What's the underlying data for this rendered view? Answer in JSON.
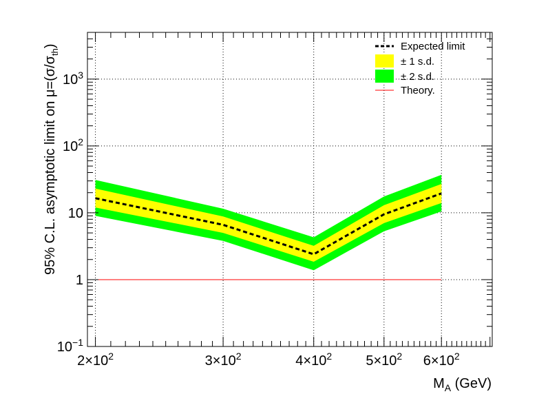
{
  "chart_data": {
    "type": "line",
    "x_scale": "log",
    "y_scale": "log",
    "xlim": [
      195,
      705
    ],
    "ylim": [
      0.1,
      5000
    ],
    "grid": true,
    "xlabel": {
      "main": "M",
      "sub": "A",
      "unit": " (GeV)"
    },
    "ylabel": {
      "main": "95% C.L. asymptotic limit on μ=(σ/σ",
      "sub": "th",
      "close": ")"
    },
    "x_ticks": [
      {
        "value": 200,
        "mantissa": "2×10",
        "exp": "2"
      },
      {
        "value": 300,
        "mantissa": "3×10",
        "exp": "2"
      },
      {
        "value": 400,
        "mantissa": "4×10",
        "exp": "2"
      },
      {
        "value": 500,
        "mantissa": "5×10",
        "exp": "2"
      },
      {
        "value": 600,
        "mantissa": "6×10",
        "exp": "2"
      }
    ],
    "y_ticks": [
      {
        "value": 0.1,
        "mantissa": "10",
        "exp": "−1"
      },
      {
        "value": 1,
        "mantissa": "1",
        "exp": ""
      },
      {
        "value": 10,
        "mantissa": "10",
        "exp": ""
      },
      {
        "value": 100,
        "mantissa": "10",
        "exp": "2"
      },
      {
        "value": 1000,
        "mantissa": "10",
        "exp": "3"
      }
    ],
    "x": [
      200,
      300,
      400,
      500,
      600
    ],
    "series": [
      {
        "name": "Expected limit",
        "values": [
          16.5,
          6.6,
          2.4,
          9.5,
          19.5
        ]
      },
      {
        "name": "± 1 s.d.",
        "lower": [
          12.0,
          5.0,
          1.85,
          7.0,
          14.0
        ],
        "upper": [
          23.0,
          8.8,
          3.2,
          13.0,
          27.0
        ]
      },
      {
        "name": "± 2 s.d.",
        "lower": [
          9.0,
          3.8,
          1.38,
          5.3,
          10.5
        ],
        "upper": [
          31.0,
          11.5,
          4.3,
          17.5,
          37.0
        ]
      },
      {
        "name": "Theory.",
        "values": [
          1,
          1,
          1,
          1,
          1
        ]
      }
    ],
    "legend": {
      "position": "top-right",
      "entries": [
        {
          "label": "Expected limit",
          "style": "dashed-line"
        },
        {
          "label": "± 1 s.d.",
          "style": "fill-yellow"
        },
        {
          "label": "± 2 s.d.",
          "style": "fill-green"
        },
        {
          "label": "Theory.",
          "style": "red-line"
        }
      ]
    },
    "colors": {
      "expected": "#000000",
      "band_1sd": "#ffff00",
      "band_2sd": "#00ff00",
      "theory": "#ff0000",
      "grid": "#000000"
    }
  }
}
